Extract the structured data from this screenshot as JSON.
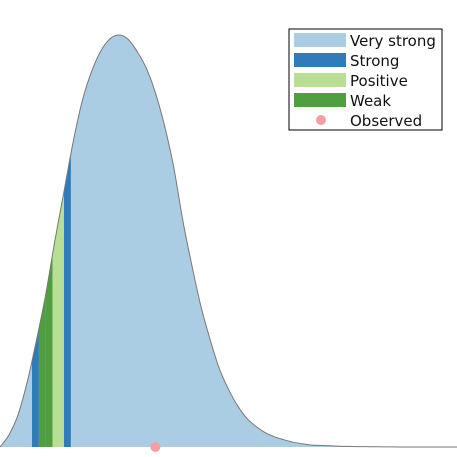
{
  "chart_data": {
    "type": "area",
    "title": "",
    "xlabel": "",
    "ylabel": "",
    "grid": false,
    "axes_visible": false,
    "legend": {
      "placement": "top-right",
      "entries": [
        {
          "label": "Very strong",
          "color": "#abcde3"
        },
        {
          "label": "Strong",
          "color": "#2f7bbb"
        },
        {
          "label": "Positive",
          "color": "#b9df94"
        },
        {
          "label": "Weak",
          "color": "#4f9e3f"
        },
        {
          "label": "Observed",
          "color": "#f4a0a2",
          "marker": "circle"
        }
      ]
    },
    "xlim": [
      0,
      1
    ],
    "ylim": [
      0,
      1
    ],
    "density": {
      "name": "Very strong",
      "x": [
        0.0,
        0.02,
        0.04,
        0.06,
        0.08,
        0.1,
        0.12,
        0.14,
        0.16,
        0.18,
        0.2,
        0.22,
        0.24,
        0.26,
        0.28,
        0.3,
        0.32,
        0.34,
        0.36,
        0.38,
        0.4,
        0.42,
        0.44,
        0.46,
        0.48,
        0.5,
        0.52,
        0.54,
        0.56,
        0.58,
        0.6,
        0.62,
        0.64,
        0.66,
        0.68,
        0.7,
        0.72,
        0.74,
        0.76,
        0.78,
        0.8,
        0.82,
        0.84,
        0.86,
        0.88,
        0.9,
        0.92,
        0.94,
        0.96,
        0.98,
        1.0
      ],
      "y": [
        0.0,
        0.03,
        0.08,
        0.16,
        0.26,
        0.37,
        0.5,
        0.62,
        0.74,
        0.84,
        0.91,
        0.96,
        0.99,
        1.0,
        0.99,
        0.96,
        0.92,
        0.86,
        0.78,
        0.68,
        0.55,
        0.44,
        0.34,
        0.26,
        0.19,
        0.14,
        0.1,
        0.07,
        0.05,
        0.035,
        0.025,
        0.018,
        0.012,
        0.008,
        0.005,
        0.004,
        0.003,
        0.002,
        0.0015,
        0.001,
        0.0008,
        0.0006,
        0.0004,
        0.0002,
        0.0001,
        0.0,
        0.0,
        0.0,
        0.0,
        0.0,
        0.0
      ]
    },
    "bands": [
      {
        "name": "Strong",
        "x0": 0.07,
        "x1": 0.085
      },
      {
        "name": "Weak",
        "x0": 0.085,
        "x1": 0.1
      },
      {
        "name": "Weak",
        "x0": 0.1,
        "x1": 0.115
      },
      {
        "name": "Positive",
        "x0": 0.115,
        "x1": 0.14
      },
      {
        "name": "Strong",
        "x0": 0.14,
        "x1": 0.155
      }
    ],
    "observed": {
      "name": "Observed",
      "x": 0.34,
      "y": 0.0
    }
  }
}
